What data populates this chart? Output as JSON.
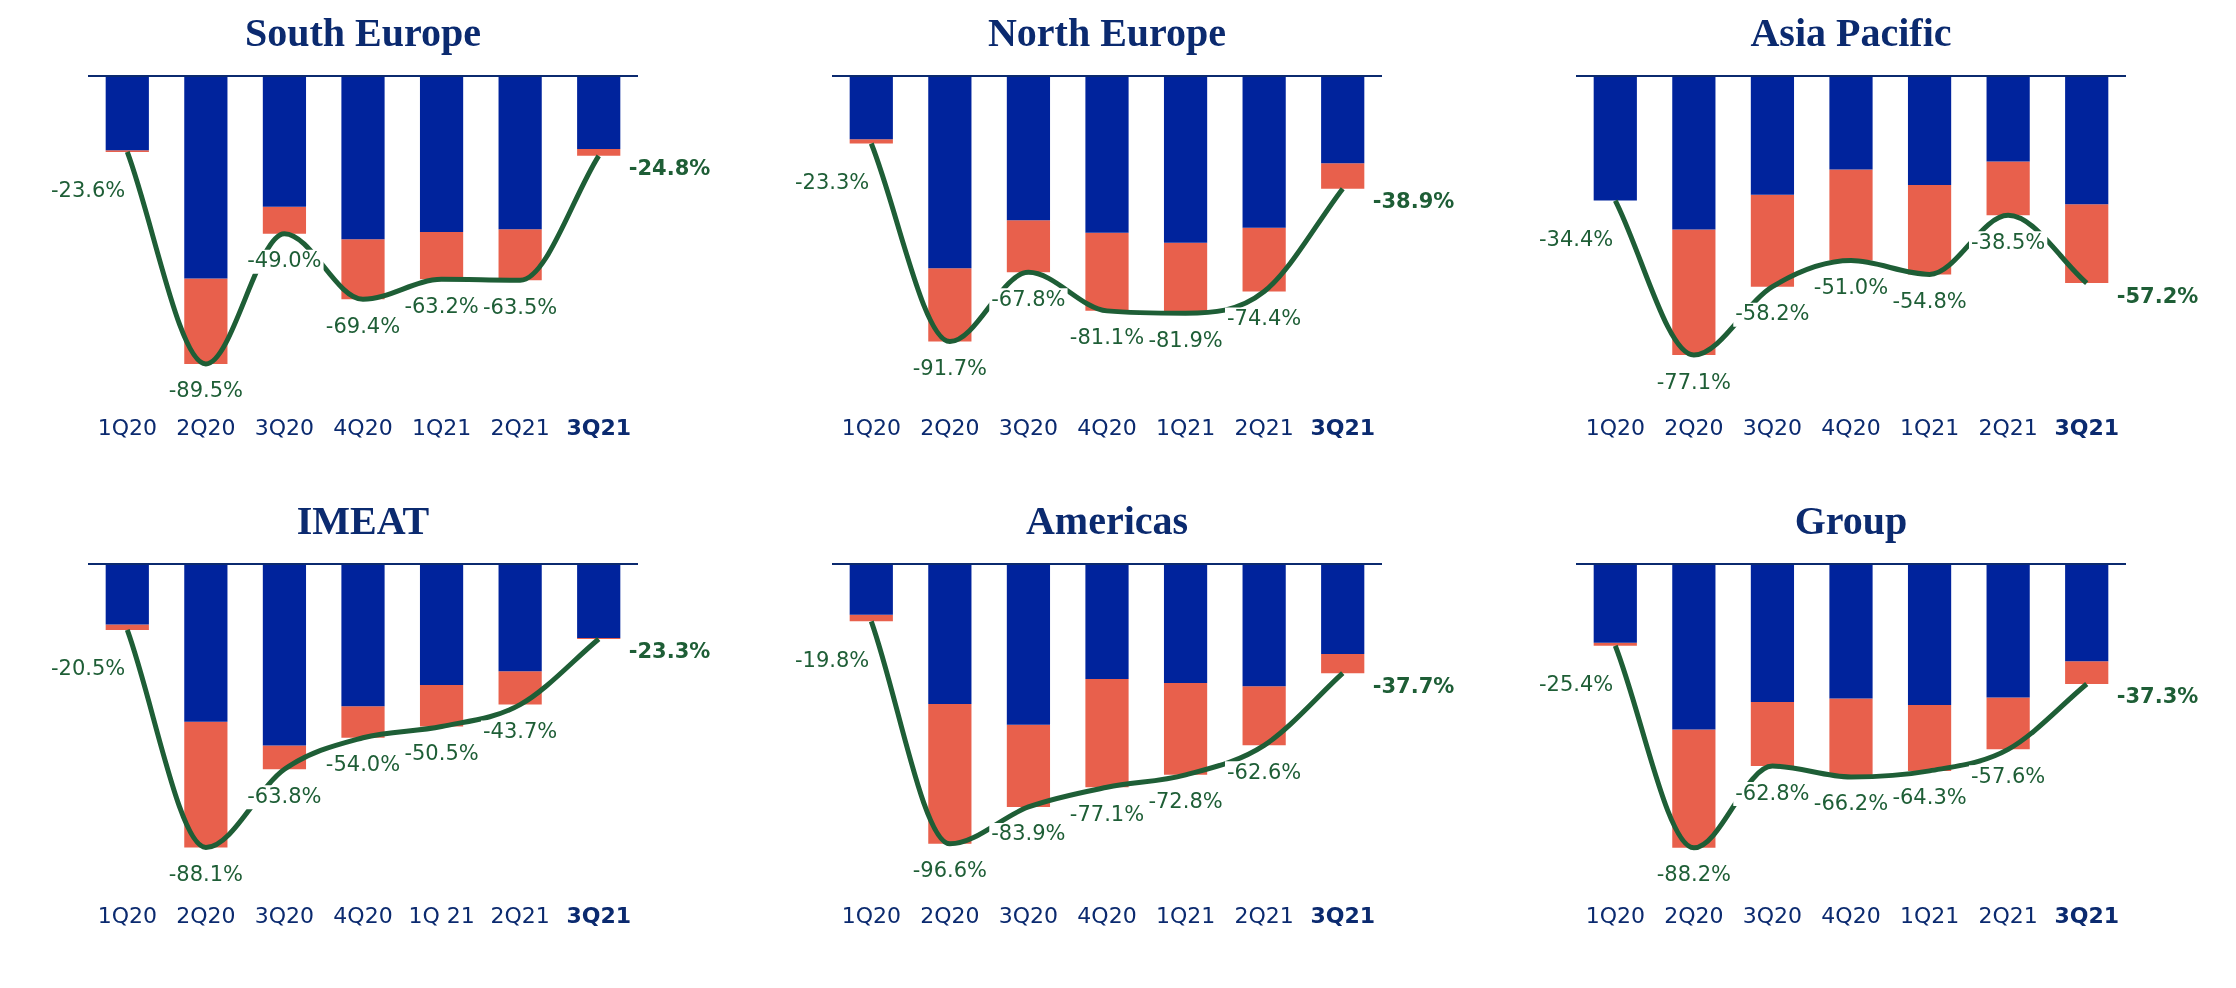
{
  "chart_data": [
    {
      "type": "bar",
      "title": "South Europe",
      "stacked": true,
      "categories": [
        "1Q20",
        "2Q20",
        "3Q20",
        "4Q20",
        "1Q21",
        "2Q21",
        "3Q21"
      ],
      "tick_labels": "x",
      "series": [
        {
          "color": "#00239c",
          "values": [
            -23.1,
            -62.9,
            -40.6,
            -50.7,
            -48.5,
            -47.6,
            -22.7
          ]
        },
        {
          "color": "#e8604c",
          "values": [
            -0.5,
            -26.6,
            -8.4,
            -18.7,
            -14.7,
            -15.9,
            -2.1
          ]
        },
        {
          "type": "line",
          "color": "#1e5e36",
          "values": [
            -23.6,
            -89.5,
            -49.0,
            -69.4,
            -63.2,
            -63.5,
            -24.8
          ],
          "value_labels": [
            "-23.6%",
            "-89.5%",
            "-49.0%",
            "-69.4%",
            "-63.2%",
            "-63.5%",
            "-24.8%"
          ]
        }
      ]
    },
    {
      "type": "bar",
      "title": "North Europe",
      "stacked": true,
      "categories": [
        "1Q20",
        "2Q20",
        "3Q20",
        "4Q20",
        "1Q21",
        "2Q21",
        "3Q21"
      ],
      "tick_labels": "x",
      "series": [
        {
          "color": "#00239c",
          "values": [
            -21.8,
            -66.4,
            -49.8,
            -54.1,
            -57.6,
            -52.4,
            -30.1
          ]
        },
        {
          "color": "#e8604c",
          "values": [
            -1.5,
            -25.3,
            -18.0,
            -27.0,
            -24.3,
            -22.0,
            -8.8
          ]
        },
        {
          "type": "line",
          "color": "#1e5e36",
          "values": [
            -23.3,
            -91.7,
            -67.8,
            -81.1,
            -81.9,
            -74.4,
            -38.9
          ],
          "value_labels": [
            "-23.3%",
            "-91.7%",
            "-67.8%",
            "-81.1%",
            "-81.9%",
            "-74.4%",
            "-38.9%"
          ]
        }
      ]
    },
    {
      "type": "bar",
      "title": "Asia Pacific",
      "stacked": true,
      "categories": [
        "1Q20",
        "2Q20",
        "3Q20",
        "4Q20",
        "1Q21",
        "2Q21",
        "3Q21"
      ],
      "tick_labels": "x",
      "series": [
        {
          "color": "#00239c",
          "values": [
            -34.4,
            -42.4,
            -32.8,
            -25.8,
            -30.1,
            -23.6,
            -35.4
          ]
        },
        {
          "color": "#e8604c",
          "values": [
            0,
            -34.7,
            -25.4,
            -25.2,
            -24.7,
            -14.9,
            -21.8
          ]
        },
        {
          "type": "line",
          "color": "#1e5e36",
          "values": [
            -34.4,
            -77.1,
            -58.2,
            -51.0,
            -54.8,
            -38.5,
            -57.2
          ],
          "value_labels": [
            "-34.4%",
            "-77.1%",
            "-58.2%",
            "-51.0%",
            "-54.8%",
            "-38.5%",
            "-57.2%"
          ]
        }
      ]
    },
    {
      "type": "bar",
      "title": "IMEAT",
      "stacked": true,
      "categories": [
        "1Q20",
        "2Q20",
        "3Q20",
        "4Q20",
        "1Q 21",
        "2Q21",
        "3Q21"
      ],
      "tick_labels": "x",
      "series": [
        {
          "color": "#00239c",
          "values": [
            -18.8,
            -49.0,
            -56.4,
            -44.2,
            -37.6,
            -33.3,
            -23.0
          ]
        },
        {
          "color": "#e8604c",
          "values": [
            -1.7,
            -39.1,
            -7.4,
            -9.8,
            -12.9,
            -10.4,
            -0.3
          ]
        },
        {
          "type": "line",
          "color": "#1e5e36",
          "values": [
            -20.5,
            -88.1,
            -63.8,
            -54.0,
            -50.5,
            -43.7,
            -23.3
          ],
          "value_labels": [
            "-20.5%",
            "-88.1%",
            "-63.8%",
            "-54.0%",
            "-50.5%",
            "-43.7%",
            "-23.3%"
          ]
        }
      ]
    },
    {
      "type": "bar",
      "title": "Americas",
      "stacked": true,
      "categories": [
        "1Q20",
        "2Q20",
        "3Q20",
        "4Q20",
        "1Q21",
        "2Q21",
        "3Q21"
      ],
      "tick_labels": "x",
      "series": [
        {
          "color": "#00239c",
          "values": [
            -17.5,
            -48.3,
            -55.5,
            -39.7,
            -41.1,
            -42.2,
            -31.1
          ]
        },
        {
          "color": "#e8604c",
          "values": [
            -2.3,
            -48.3,
            -28.4,
            -37.4,
            -31.7,
            -20.4,
            -6.6
          ]
        },
        {
          "type": "line",
          "color": "#1e5e36",
          "values": [
            -19.8,
            -96.6,
            -83.9,
            -77.1,
            -72.8,
            -62.6,
            -37.7
          ],
          "value_labels": [
            "-19.8%",
            "-96.6%",
            "-83.9%",
            "-77.1%",
            "-72.8%",
            "-62.6%",
            "-37.7%"
          ]
        }
      ]
    },
    {
      "type": "bar",
      "title": "Group",
      "stacked": true,
      "categories": [
        "1Q20",
        "2Q20",
        "3Q20",
        "4Q20",
        "1Q21",
        "2Q21",
        "3Q21"
      ],
      "tick_labels": "x",
      "series": [
        {
          "color": "#00239c",
          "values": [
            -24.5,
            -51.4,
            -42.9,
            -41.8,
            -43.8,
            -41.5,
            -30.2
          ]
        },
        {
          "color": "#e8604c",
          "values": [
            -0.9,
            -36.8,
            -19.9,
            -24.4,
            -20.5,
            -16.1,
            -7.1
          ]
        },
        {
          "type": "line",
          "color": "#1e5e36",
          "values": [
            -25.4,
            -88.2,
            -62.8,
            -66.2,
            -64.3,
            -57.6,
            -37.3
          ],
          "value_labels": [
            "-25.4%",
            "-88.2%",
            "-62.8%",
            "-66.2%",
            "-64.3%",
            "-57.6%",
            "-37.3%"
          ]
        }
      ]
    }
  ]
}
